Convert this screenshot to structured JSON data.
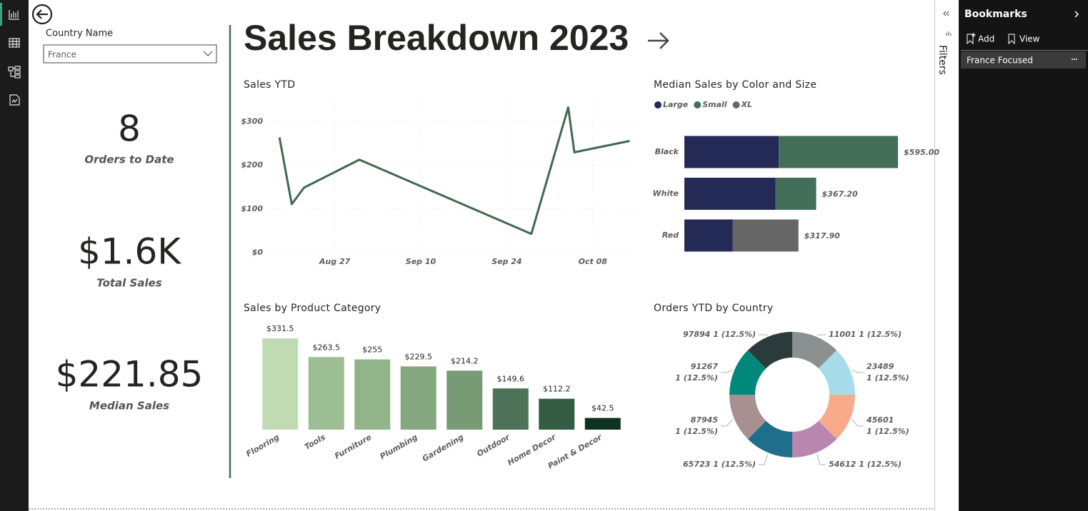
{
  "slicer": {
    "label": "Country Name",
    "value": "France"
  },
  "cards": [
    {
      "value": "8",
      "label": "Orders to Date"
    },
    {
      "value": "$1.6K",
      "label": "Total Sales"
    },
    {
      "value": "$221.85",
      "label": "Median Sales"
    }
  ],
  "header": {
    "title": "Sales Breakdown 2023"
  },
  "filters": {
    "label": "Filters"
  },
  "bookmarks": {
    "title": "Bookmarks",
    "actions": [
      "Add",
      "View"
    ],
    "items": [
      "France Focused"
    ]
  },
  "chart_data": [
    {
      "type": "line",
      "title": "Sales YTD",
      "x": [
        "Aug 18",
        "Aug 20",
        "Aug 22",
        "Aug 31",
        "Sep 28",
        "Oct 04",
        "Oct 05",
        "Oct 14"
      ],
      "values": [
        264,
        111,
        149,
        213,
        43,
        333,
        230,
        256
      ],
      "color": "#41694f",
      "xlim": [
        "Aug 16",
        "Oct 15"
      ],
      "xticks": [
        "Aug 27",
        "Sep 10",
        "Sep 24",
        "Oct 08"
      ],
      "ylim": [
        0,
        350
      ],
      "yticks": [
        {
          "value": 0,
          "label": "$0"
        },
        {
          "value": 100,
          "label": "$100"
        },
        {
          "value": 200,
          "label": "$200"
        },
        {
          "value": 300,
          "label": "$300"
        }
      ],
      "grid": true
    },
    {
      "type": "bar",
      "orientation": "horizontal",
      "stacked": true,
      "title": "Median Sales by Color and Size",
      "categories": [
        "Black",
        "White",
        "Red"
      ],
      "series": [
        {
          "name": "Large",
          "color": "#222a55",
          "values": [
            263,
            254,
            135
          ]
        },
        {
          "name": "Small",
          "color": "#436e5a",
          "values": [
            332,
            113.2,
            null
          ]
        },
        {
          "name": "XL",
          "color": "#666666",
          "values": [
            null,
            null,
            182.9
          ]
        }
      ],
      "totals": {
        "values": [
          595,
          367.2,
          317.9
        ],
        "value_labels": [
          "$595.00",
          "$367.20",
          "$317.90"
        ]
      },
      "xlim": [
        0,
        600
      ],
      "legend": "top-left"
    },
    {
      "type": "bar",
      "title": "Sales by Product Category",
      "categories": [
        "Flooring",
        "Tools",
        "Furniture",
        "Plumbing",
        "Gardening",
        "Outdoor",
        "Home Decor",
        "Paint & Decor"
      ],
      "values": [
        331.5,
        263.5,
        255,
        229.5,
        214.2,
        149.6,
        112.2,
        42.5
      ],
      "value_labels": [
        "$331.5",
        "$263.5",
        "$255",
        "$229.5",
        "$214.2",
        "$149.6",
        "$112.2",
        "$42.5"
      ],
      "colors": [
        "#c0dab4",
        "#9dbd95",
        "#92b48b",
        "#86a880",
        "#789a75",
        "#4e7258",
        "#355d44",
        "#0e3320"
      ],
      "ylim": [
        0,
        340
      ]
    },
    {
      "type": "donut",
      "title": "Orders YTD by Country",
      "categories": [
        "11001",
        "23489",
        "45601",
        "54612",
        "65723",
        "87945",
        "91267",
        "97894"
      ],
      "values": [
        1,
        1,
        1,
        1,
        1,
        1,
        1,
        1
      ],
      "value_labels": [
        "1 (12.5%)",
        "1 (12.5%)",
        "1 (12.5%)",
        "1 (12.5%)",
        "1 (12.5%)",
        "1 (12.5%)",
        "1 (12.5%)",
        "1 (12.5%)"
      ],
      "colors": [
        "#8a9190",
        "#a6dcea",
        "#f9aa8a",
        "#b886ae",
        "#1f6e8a",
        "#a89090",
        "#00897b",
        "#2b3a3a"
      ]
    }
  ]
}
